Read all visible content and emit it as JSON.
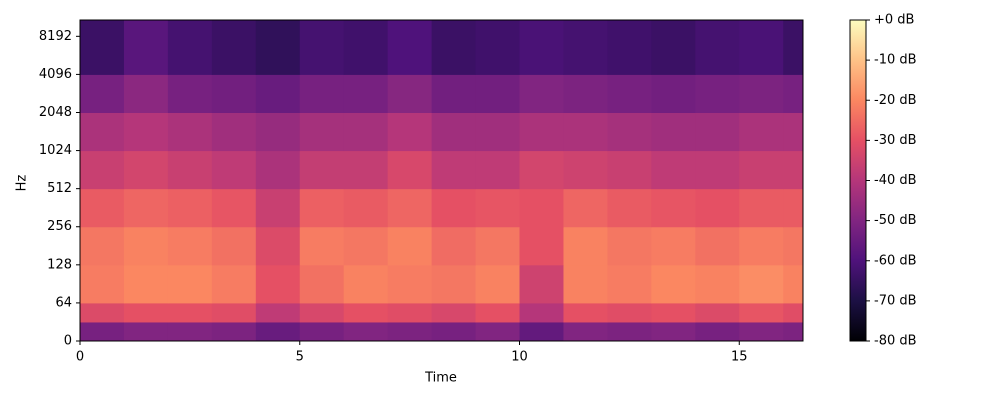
{
  "chart_data": {
    "type": "heatmap",
    "xlabel": "Time",
    "ylabel": "Hz",
    "xlim": [
      0,
      16.45
    ],
    "xticks": [
      0,
      5,
      10,
      15
    ],
    "ylim": [
      0,
      11025
    ],
    "yscale": "symlog",
    "ylinthresh": 64,
    "yticks": [
      0,
      64,
      128,
      256,
      512,
      1024,
      2048,
      4096,
      8192
    ],
    "x_bins": [
      0,
      1,
      2,
      3,
      4,
      5,
      6,
      7,
      8,
      9,
      10,
      11,
      12,
      13,
      14,
      15,
      16,
      16.45
    ],
    "y_bins": [
      0,
      32,
      64,
      128,
      256,
      512,
      1024,
      2048,
      4096,
      11025
    ],
    "values": [
      [
        -52,
        -50,
        -50,
        -51,
        -55,
        -52,
        -50,
        -51,
        -52,
        -50,
        -56,
        -50,
        -51,
        -50,
        -52,
        -50,
        -51
      ],
      [
        -32,
        -30,
        -30,
        -31,
        -38,
        -33,
        -30,
        -31,
        -33,
        -30,
        -40,
        -30,
        -31,
        -30,
        -32,
        -29,
        -31
      ],
      [
        -22,
        -20,
        -20,
        -22,
        -30,
        -24,
        -21,
        -22,
        -23,
        -21,
        -35,
        -21,
        -22,
        -20,
        -21,
        -19,
        -21
      ],
      [
        -23,
        -21,
        -22,
        -24,
        -32,
        -22,
        -23,
        -21,
        -25,
        -23,
        -30,
        -21,
        -23,
        -22,
        -24,
        -22,
        -23
      ],
      [
        -28,
        -26,
        -27,
        -29,
        -36,
        -27,
        -28,
        -26,
        -30,
        -29,
        -30,
        -26,
        -28,
        -29,
        -30,
        -28,
        -28
      ],
      [
        -36,
        -34,
        -36,
        -38,
        -42,
        -37,
        -37,
        -33,
        -38,
        -38,
        -34,
        -35,
        -36,
        -38,
        -38,
        -36,
        -36
      ],
      [
        -42,
        -40,
        -42,
        -44,
        -46,
        -43,
        -43,
        -40,
        -44,
        -44,
        -42,
        -42,
        -43,
        -44,
        -44,
        -42,
        -42
      ],
      [
        -52,
        -48,
        -52,
        -53,
        -55,
        -52,
        -52,
        -49,
        -53,
        -53,
        -50,
        -51,
        -52,
        -53,
        -52,
        -51,
        -52
      ],
      [
        -64,
        -58,
        -62,
        -64,
        -66,
        -62,
        -63,
        -60,
        -64,
        -63,
        -61,
        -62,
        -63,
        -64,
        -62,
        -61,
        -64
      ]
    ],
    "colormap": [
      "#000004",
      "#1c1044",
      "#4f127b",
      "#812581",
      "#b5367a",
      "#e55064",
      "#fb8761",
      "#fec287",
      "#fcfdbf"
    ],
    "clim": [
      -80,
      0
    ],
    "cticks": [
      {
        "value": 0,
        "label": "+0 dB"
      },
      {
        "value": -10,
        "label": "-10 dB"
      },
      {
        "value": -20,
        "label": "-20 dB"
      },
      {
        "value": -30,
        "label": "-30 dB"
      },
      {
        "value": -40,
        "label": "-40 dB"
      },
      {
        "value": -50,
        "label": "-50 dB"
      },
      {
        "value": -60,
        "label": "-60 dB"
      },
      {
        "value": -70,
        "label": "-70 dB"
      },
      {
        "value": -80,
        "label": "-80 dB"
      }
    ]
  }
}
